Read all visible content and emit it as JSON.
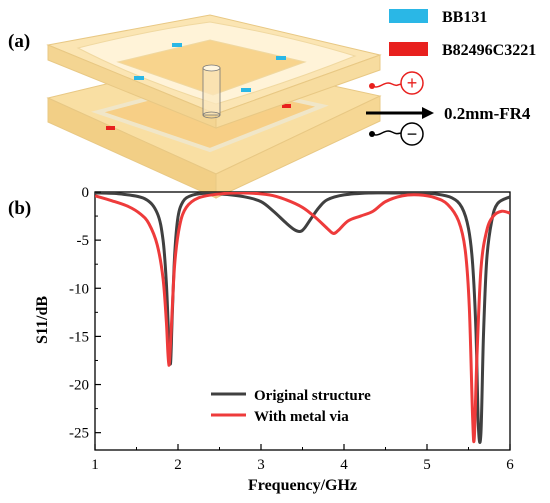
{
  "panel_a": {
    "label": "(a)",
    "legend": [
      {
        "name": "BB131",
        "color": "#2ab7e6"
      },
      {
        "name": "B82496C3221",
        "color": "#e8201e"
      }
    ],
    "substrate_label": "0.2mm-FR4",
    "port_plus": "+",
    "port_minus": "−"
  },
  "panel_b": {
    "label": "(b)"
  },
  "chart_data": {
    "type": "line",
    "title": "",
    "xlabel": "Frequency/GHz",
    "ylabel": "S11/dB",
    "xlim": [
      1,
      6
    ],
    "ylim": [
      -26,
      0
    ],
    "xticks": [
      1,
      2,
      3,
      4,
      5,
      6
    ],
    "yticks": [
      0,
      -5,
      -10,
      -15,
      -20,
      -25
    ],
    "grid": false,
    "legend_position": "bottom-center",
    "series": [
      {
        "name": "Original structure",
        "color": "#404040",
        "x": [
          1.0,
          1.3,
          1.6,
          1.75,
          1.82,
          1.86,
          1.89,
          1.91,
          1.93,
          1.96,
          2.0,
          2.06,
          2.15,
          2.3,
          2.5,
          2.8,
          3.0,
          3.15,
          3.3,
          3.4,
          3.47,
          3.52,
          3.6,
          3.7,
          3.8,
          4.0,
          4.3,
          4.6,
          4.9,
          5.1,
          5.3,
          5.42,
          5.5,
          5.55,
          5.59,
          5.62,
          5.65,
          5.68,
          5.72,
          5.78,
          5.85,
          6.0
        ],
        "y": [
          -0.1,
          -0.2,
          -0.7,
          -2.2,
          -5.0,
          -9.5,
          -15.5,
          -17.8,
          -13.0,
          -6.5,
          -2.6,
          -1.0,
          -0.4,
          -0.15,
          -0.2,
          -0.5,
          -1.0,
          -2.0,
          -3.2,
          -3.9,
          -4.1,
          -3.8,
          -2.8,
          -1.6,
          -0.8,
          -0.3,
          -0.1,
          -0.1,
          -0.1,
          -0.2,
          -0.6,
          -1.6,
          -3.8,
          -7.5,
          -14.5,
          -24.5,
          -25.0,
          -15.0,
          -7.0,
          -3.0,
          -1.2,
          -0.5
        ]
      },
      {
        "name": "With metal via",
        "color": "#ee3b3b",
        "x": [
          1.0,
          1.2,
          1.4,
          1.55,
          1.65,
          1.75,
          1.82,
          1.86,
          1.89,
          1.92,
          1.96,
          2.02,
          2.1,
          2.25,
          2.5,
          2.8,
          3.1,
          3.3,
          3.5,
          3.65,
          3.8,
          3.87,
          3.93,
          4.05,
          4.2,
          4.35,
          4.5,
          4.7,
          4.9,
          5.1,
          5.25,
          5.38,
          5.46,
          5.51,
          5.55,
          5.57,
          5.6,
          5.65,
          5.72,
          5.8,
          5.9,
          6.0
        ],
        "y": [
          -0.4,
          -0.9,
          -1.5,
          -2.3,
          -3.3,
          -5.5,
          -9.0,
          -13.5,
          -18.0,
          -14.0,
          -7.5,
          -3.5,
          -1.6,
          -0.6,
          -0.2,
          -0.1,
          -0.3,
          -0.8,
          -1.6,
          -2.6,
          -3.8,
          -4.3,
          -4.0,
          -3.0,
          -2.5,
          -2.0,
          -1.0,
          -0.4,
          -0.3,
          -0.6,
          -1.3,
          -3.0,
          -6.0,
          -12.0,
          -23.5,
          -25.5,
          -17.5,
          -8.0,
          -4.0,
          -2.5,
          -2.0,
          -2.2
        ]
      }
    ]
  }
}
